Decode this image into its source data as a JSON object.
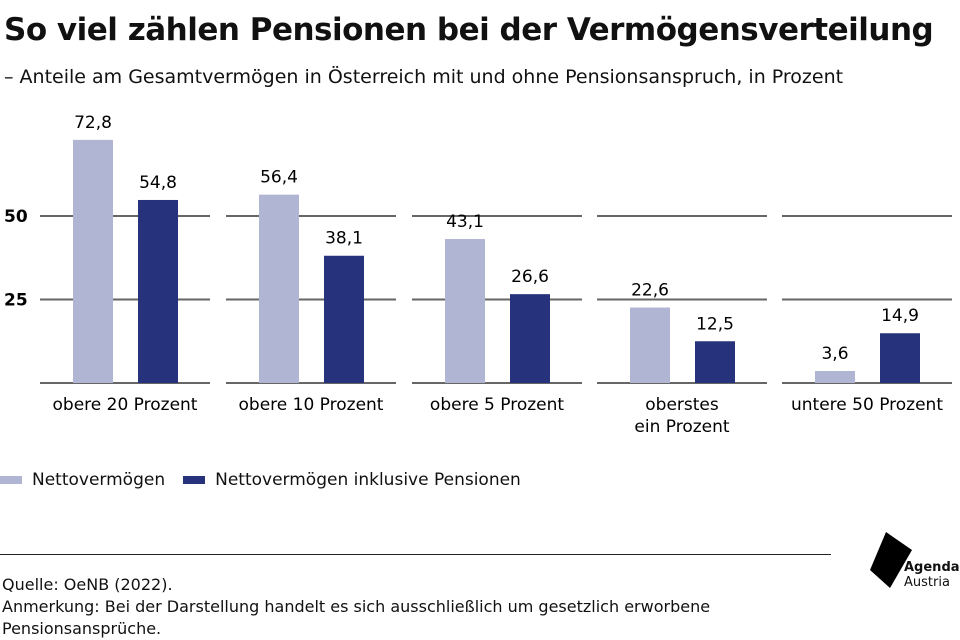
{
  "title": "So viel zählen Pensionen bei der Vermögensverteilung",
  "subtitle": "– Anteile am Gesamtvermögen in Österreich mit und ohne Pensionsanspruch, in Prozent",
  "chart_data": {
    "type": "bar",
    "categories": [
      "obere 20 Prozent",
      "obere 10 Prozent",
      "obere 5 Prozent",
      "oberstes ein Prozent",
      "untere 50 Prozent"
    ],
    "category_lines": [
      [
        "obere 20 Prozent"
      ],
      [
        "obere 10 Prozent"
      ],
      [
        "obere 5 Prozent"
      ],
      [
        "oberstes",
        "ein Prozent"
      ],
      [
        "untere 50 Prozent"
      ]
    ],
    "series": [
      {
        "name": "Nettovermögen",
        "values": [
          72.8,
          56.4,
          43.1,
          22.6,
          3.6
        ],
        "labels": [
          "72,8",
          "56,4",
          "43,1",
          "22,6",
          "3,6"
        ],
        "color": "#b1b5d4"
      },
      {
        "name": "Nettovermögen inklusive Pensionen",
        "values": [
          54.8,
          38.1,
          26.6,
          12.5,
          14.9
        ],
        "labels": [
          "54,8",
          "38,1",
          "26,6",
          "12,5",
          "14,9"
        ],
        "color": "#27327c"
      }
    ],
    "yticks": [
      25,
      50
    ],
    "ylim": [
      0,
      80
    ],
    "grid": true,
    "legend": "bottom-left"
  },
  "footer": {
    "source": "Quelle: OeNB (2022).",
    "note": "Anmerkung: Bei der Darstellung handelt es sich ausschließlich um gesetzlich erworbene Pensionsansprüche."
  },
  "logo": {
    "line1": "Agenda",
    "line2": "Austria"
  }
}
